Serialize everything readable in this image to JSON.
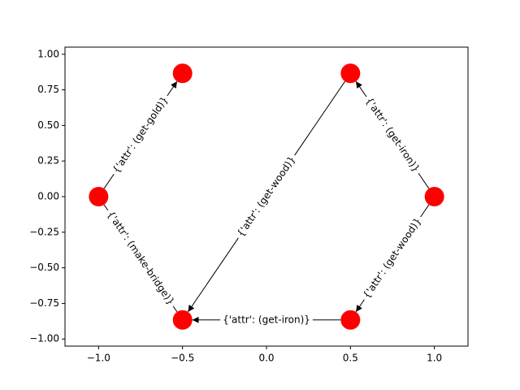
{
  "chart_data": {
    "type": "graph",
    "nodes": {
      "x": [
        -0.5,
        0.5,
        -1.0,
        1.0,
        -0.5,
        0.5
      ],
      "y": [
        0.866,
        0.866,
        0.0,
        0.0,
        -0.866,
        -0.866
      ],
      "color": "#ff0000"
    },
    "edges": [
      {
        "source": 2,
        "target": 0,
        "label": "{'attr': (get-gold)}",
        "arrow": true
      },
      {
        "source": 1,
        "target": 4,
        "label": "{'attr': (get-wood)}",
        "arrow": true
      },
      {
        "source": 3,
        "target": 1,
        "label": "{'attr': (get-iron)}",
        "arrow": true
      },
      {
        "source": 3,
        "target": 5,
        "label": "{'attr': (get-wood)}",
        "arrow": true
      },
      {
        "source": 5,
        "target": 4,
        "label": "{'attr': (get-iron)}",
        "arrow": true
      },
      {
        "source": 2,
        "target": 4,
        "label": "{'attr': (make-bridge)}",
        "arrow": false
      }
    ],
    "xlim": [
      -1.2,
      1.2
    ],
    "ylim": [
      -1.05,
      1.05
    ],
    "xticks": [
      {
        "value": -1.0,
        "label": "−1.0"
      },
      {
        "value": -0.5,
        "label": "−0.5"
      },
      {
        "value": 0.0,
        "label": "0.0"
      },
      {
        "value": 0.5,
        "label": "0.5"
      },
      {
        "value": 1.0,
        "label": "1.0"
      }
    ],
    "yticks": [
      {
        "value": -1.0,
        "label": "−1.00"
      },
      {
        "value": -0.75,
        "label": "−0.75"
      },
      {
        "value": -0.5,
        "label": "−0.50"
      },
      {
        "value": -0.25,
        "label": "−0.25"
      },
      {
        "value": 0.0,
        "label": "0.00"
      },
      {
        "value": 0.25,
        "label": "0.25"
      },
      {
        "value": 0.5,
        "label": "0.50"
      },
      {
        "value": 0.75,
        "label": "0.75"
      },
      {
        "value": 1.0,
        "label": "1.00"
      }
    ]
  }
}
